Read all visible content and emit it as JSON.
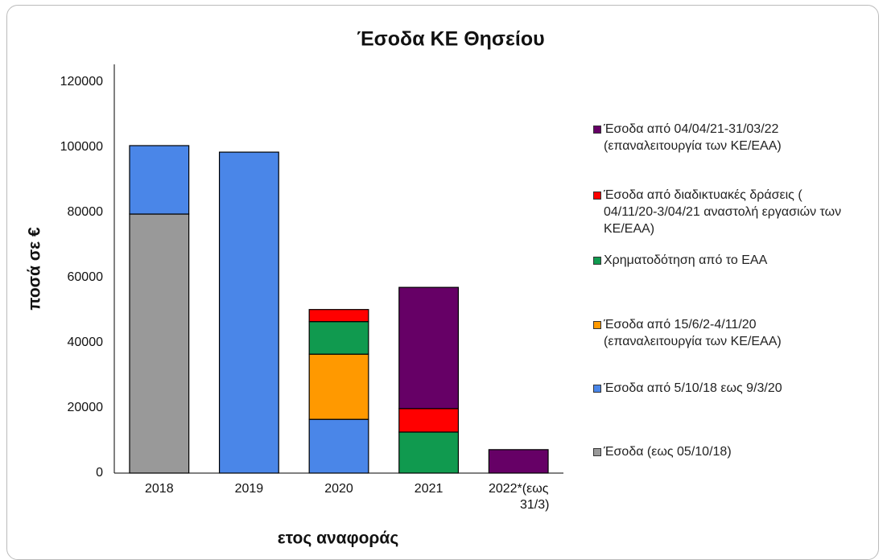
{
  "chart_data": {
    "type": "bar",
    "stacked": true,
    "title": "Έσοδα ΚΕ Θησείου",
    "x_label": "ετος αναφοράς",
    "y_label": "ποσά σε €",
    "categories": [
      "2018",
      "2019",
      "2020",
      "2021",
      "2022*(εως 31/3)"
    ],
    "ylim": [
      0,
      120000
    ],
    "yticks": [
      0,
      20000,
      40000,
      60000,
      80000,
      100000,
      120000
    ],
    "grid": false,
    "legend": "right",
    "series": [
      {
        "name": "Έσοδα από 04/04/21-31/03/22 (επαναλειτουργία των ΚΕ/ΕΑΑ)",
        "color": "#660066",
        "values": [
          null,
          null,
          null,
          37200,
          7200
        ]
      },
      {
        "name": "Έσοδα από διαδικτυακές δράσεις ( 04/11/20-3/04/21 αναστολή εργασιών των ΚΕ/ΕΑΑ)",
        "color": "#ff0000",
        "values": [
          null,
          null,
          3700,
          7200,
          null
        ]
      },
      {
        "name": "Χρηματοδότηση από το ΕΑΑ",
        "color": "#109a4f",
        "values": [
          null,
          null,
          10000,
          12600,
          null
        ]
      },
      {
        "name": "Έσοδα από 15/6/2-4/11/20 (επαναλειτουργία των ΚΕ/ΕΑΑ)",
        "color": "#ff9900",
        "values": [
          null,
          null,
          20000,
          null,
          null
        ]
      },
      {
        "name": "Έσοδα από  5/10/18 εως 9/3/20",
        "color": "#4a86e8",
        "values": [
          21000,
          98500,
          16500,
          null,
          null
        ]
      },
      {
        "name": "Έσοδα (εως 05/10/18)",
        "color": "#999999",
        "values": [
          79500,
          null,
          null,
          null,
          null
        ]
      }
    ]
  }
}
